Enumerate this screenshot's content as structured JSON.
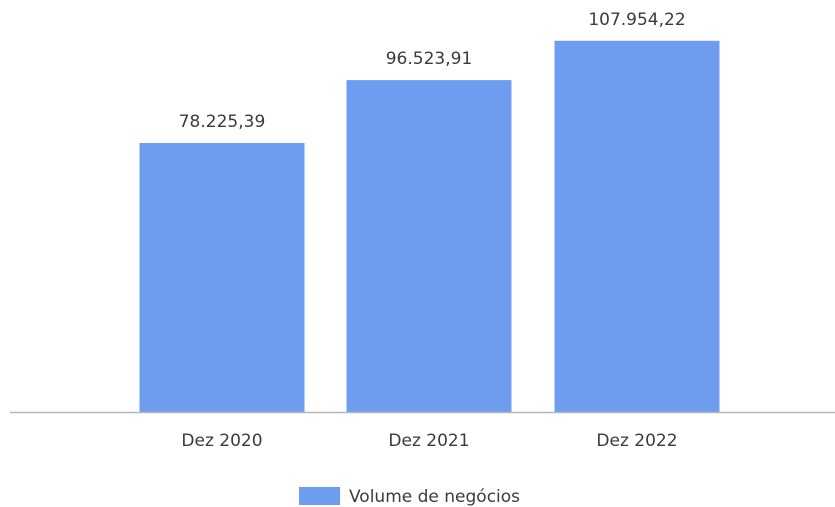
{
  "chart_data": {
    "type": "bar",
    "categories": [
      "Dez 2020",
      "Dez 2021",
      "Dez 2022"
    ],
    "series": [
      {
        "name": "Volume de negócios",
        "values": [
          78225.39,
          96523.91,
          107954.22
        ],
        "labels": [
          "78.225,39",
          "96.523,91",
          "107.954,22"
        ],
        "color": "#6e9df0"
      }
    ],
    "ylim": [
      0,
      114000
    ],
    "grid": false,
    "legend_position": "bottom-center",
    "axis_color": "#b8b8b8"
  }
}
